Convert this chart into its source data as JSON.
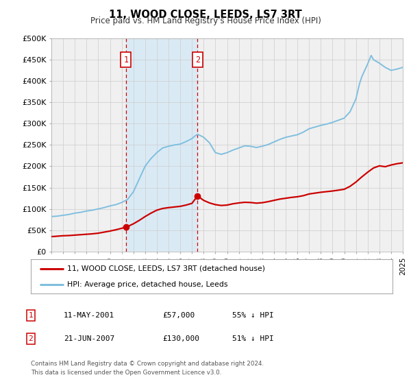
{
  "title": "11, WOOD CLOSE, LEEDS, LS7 3RT",
  "subtitle": "Price paid vs. HM Land Registry's House Price Index (HPI)",
  "ylim": [
    0,
    500000
  ],
  "yticks": [
    0,
    50000,
    100000,
    150000,
    200000,
    250000,
    300000,
    350000,
    400000,
    450000,
    500000
  ],
  "ytick_labels": [
    "£0",
    "£50K",
    "£100K",
    "£150K",
    "£200K",
    "£250K",
    "£300K",
    "£350K",
    "£400K",
    "£450K",
    "£500K"
  ],
  "hpi_color": "#7fbfdf",
  "price_color": "#cc0000",
  "bg_color": "#ffffff",
  "plot_bg_color": "#f0f0f0",
  "shade_color": "#daeaf5",
  "grid_color": "#cccccc",
  "transaction1": {
    "date_num": 2001.36,
    "price": 57000,
    "label": "1"
  },
  "transaction2": {
    "date_num": 2007.47,
    "price": 130000,
    "label": "2"
  },
  "legend_entry1": "11, WOOD CLOSE, LEEDS, LS7 3RT (detached house)",
  "legend_entry2": "HPI: Average price, detached house, Leeds",
  "table_row1": [
    "1",
    "11-MAY-2001",
    "£57,000",
    "55% ↓ HPI"
  ],
  "table_row2": [
    "2",
    "21-JUN-2007",
    "£130,000",
    "51% ↓ HPI"
  ],
  "footer": "Contains HM Land Registry data © Crown copyright and database right 2024.\nThis data is licensed under the Open Government Licence v3.0.",
  "xmin": 1995,
  "xmax": 2025,
  "hpi_years": [
    1995.0,
    1995.5,
    1996.0,
    1996.5,
    1997.0,
    1997.5,
    1998.0,
    1998.5,
    1999.0,
    1999.5,
    2000.0,
    2000.5,
    2001.0,
    2001.5,
    2002.0,
    2002.5,
    2003.0,
    2003.5,
    2004.0,
    2004.5,
    2005.0,
    2005.5,
    2006.0,
    2006.5,
    2007.0,
    2007.3,
    2007.5,
    2008.0,
    2008.5,
    2009.0,
    2009.5,
    2010.0,
    2010.5,
    2011.0,
    2011.5,
    2012.0,
    2012.5,
    2013.0,
    2013.5,
    2014.0,
    2014.5,
    2015.0,
    2015.5,
    2016.0,
    2016.5,
    2017.0,
    2017.5,
    2018.0,
    2018.5,
    2019.0,
    2019.5,
    2020.0,
    2020.5,
    2021.0,
    2021.3,
    2021.5,
    2022.0,
    2022.3,
    2022.5,
    2023.0,
    2023.5,
    2024.0,
    2024.5,
    2025.0
  ],
  "hpi_values": [
    82000,
    83000,
    85000,
    87000,
    90000,
    92000,
    95000,
    97000,
    100000,
    103000,
    107000,
    110000,
    115000,
    122000,
    140000,
    170000,
    200000,
    218000,
    232000,
    243000,
    247000,
    250000,
    252000,
    258000,
    265000,
    272000,
    275000,
    268000,
    255000,
    232000,
    228000,
    232000,
    238000,
    243000,
    248000,
    247000,
    244000,
    247000,
    251000,
    257000,
    263000,
    268000,
    271000,
    274000,
    280000,
    288000,
    292000,
    296000,
    299000,
    303000,
    308000,
    313000,
    328000,
    358000,
    393000,
    410000,
    440000,
    460000,
    450000,
    442000,
    432000,
    425000,
    428000,
    432000
  ],
  "price_years": [
    1995.0,
    1995.3,
    1995.5,
    1996.0,
    1996.5,
    1997.0,
    1997.5,
    1998.0,
    1998.5,
    1999.0,
    1999.5,
    2000.0,
    2000.5,
    2001.0,
    2001.36,
    2001.5,
    2002.0,
    2002.5,
    2003.0,
    2003.5,
    2004.0,
    2004.5,
    2005.0,
    2005.5,
    2006.0,
    2006.5,
    2007.0,
    2007.47,
    2007.7,
    2008.0,
    2008.5,
    2009.0,
    2009.5,
    2010.0,
    2010.5,
    2011.0,
    2011.5,
    2012.0,
    2012.5,
    2013.0,
    2013.5,
    2014.0,
    2014.5,
    2015.0,
    2015.5,
    2016.0,
    2016.5,
    2017.0,
    2017.5,
    2018.0,
    2018.5,
    2019.0,
    2019.5,
    2020.0,
    2020.5,
    2021.0,
    2021.5,
    2022.0,
    2022.5,
    2023.0,
    2023.5,
    2024.0,
    2024.5,
    2025.0
  ],
  "price_values": [
    35000,
    35500,
    36000,
    37000,
    37500,
    38500,
    39500,
    40500,
    41500,
    43000,
    45500,
    48000,
    51000,
    54500,
    57000,
    58500,
    65000,
    73000,
    82000,
    90000,
    97000,
    101000,
    103000,
    104500,
    106000,
    109000,
    113000,
    130000,
    126000,
    120000,
    114000,
    110000,
    108000,
    109000,
    112000,
    114000,
    115500,
    115000,
    113500,
    114500,
    117000,
    120000,
    123000,
    125000,
    127000,
    128500,
    131000,
    135000,
    137000,
    139000,
    140500,
    142000,
    144000,
    146000,
    153000,
    163000,
    175000,
    186000,
    196000,
    201000,
    199000,
    203000,
    206000,
    208000
  ]
}
